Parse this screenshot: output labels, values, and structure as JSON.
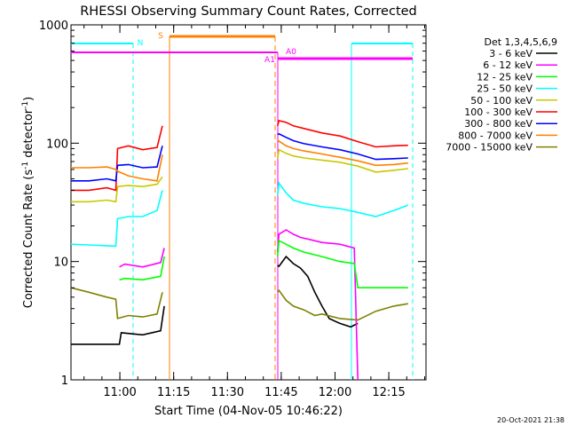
{
  "chart_data": {
    "type": "line",
    "title": "RHESSI Observing Summary Count Rates, Corrected",
    "xlabel": "Start Time (04-Nov-05 10:46:22)",
    "ylabel_main": "Corrected Count Rate (s",
    "ylabel_sup1": "-1",
    "ylabel_mid": " detector",
    "ylabel_sup2": "-1",
    "ylabel_end": ")",
    "y_scale": "log",
    "ylim": [
      1,
      1000
    ],
    "y_ticks": [
      {
        "value": 1,
        "label": "1"
      },
      {
        "value": 10,
        "label": "10"
      },
      {
        "value": 100,
        "label": "100"
      },
      {
        "value": 1000,
        "label": "1000"
      }
    ],
    "x_unit": "minutes after 10:46:22",
    "xlim": [
      0,
      99
    ],
    "x_ticks": [
      {
        "value": 13.63,
        "label": "11:00"
      },
      {
        "value": 28.63,
        "label": "11:15"
      },
      {
        "value": 43.63,
        "label": "11:30"
      },
      {
        "value": 58.63,
        "label": "11:45"
      },
      {
        "value": 73.63,
        "label": "12:00"
      },
      {
        "value": 88.63,
        "label": "12:15"
      }
    ],
    "legend_title": "Det 1,3,4,5,6,9",
    "legend_position": "right",
    "series": [
      {
        "name": "3 - 6 keV",
        "color": "#000000",
        "segments": [
          [
            [
              0,
              2.0
            ],
            [
              5,
              2.0
            ],
            [
              10,
              2.0
            ],
            [
              13.5,
              2.0
            ],
            [
              14,
              2.5
            ],
            [
              20,
              2.4
            ],
            [
              25,
              2.6
            ],
            [
              26,
              4.2
            ]
          ],
          [
            [
              57.6,
              9.3
            ],
            [
              58,
              9.1
            ],
            [
              60,
              11.0
            ],
            [
              62,
              9.6
            ],
            [
              64,
              8.8
            ],
            [
              66,
              7.5
            ],
            [
              68,
              5.5
            ],
            [
              70,
              4.2
            ],
            [
              72,
              3.3
            ],
            [
              75,
              3.0
            ],
            [
              78,
              2.8
            ],
            [
              80,
              3.0
            ]
          ]
        ]
      },
      {
        "name": "6 - 12 keV",
        "color": "#ff00ff",
        "segments": [
          [
            [
              13.5,
              9.0
            ],
            [
              15,
              9.5
            ],
            [
              20,
              9.0
            ],
            [
              25,
              9.8
            ],
            [
              26,
              13.0
            ]
          ],
          [
            [
              57.6,
              12.0
            ],
            [
              58,
              17.0
            ],
            [
              60,
              18.5
            ],
            [
              62,
              17.0
            ],
            [
              64,
              16.0
            ],
            [
              66,
              15.5
            ],
            [
              70,
              14.5
            ],
            [
              75,
              14.0
            ],
            [
              79,
              13.0
            ],
            [
              80,
              1.0
            ]
          ]
        ]
      },
      {
        "name": "12 - 25 keV",
        "color": "#00ff00",
        "segments": [
          [
            [
              13.5,
              7.0
            ],
            [
              15,
              7.2
            ],
            [
              20,
              7.0
            ],
            [
              25,
              7.5
            ],
            [
              26,
              11.0
            ]
          ],
          [
            [
              57.6,
              11.0
            ],
            [
              58,
              15.0
            ],
            [
              60,
              14.0
            ],
            [
              62,
              13.0
            ],
            [
              65,
              12.0
            ],
            [
              70,
              11.0
            ],
            [
              75,
              10.0
            ],
            [
              79,
              9.6
            ],
            [
              80,
              6.0
            ],
            [
              85,
              6.0
            ],
            [
              90,
              6.0
            ],
            [
              94,
              6.0
            ]
          ]
        ]
      },
      {
        "name": "25 - 50 keV",
        "color": "#00ffff",
        "segments": [
          [
            [
              0,
              14.0
            ],
            [
              5,
              13.8
            ],
            [
              10,
              13.6
            ],
            [
              12.5,
              13.5
            ],
            [
              13,
              23.0
            ],
            [
              16,
              24.0
            ],
            [
              20,
              24.0
            ],
            [
              24,
              27.0
            ],
            [
              25.5,
              40.0
            ]
          ],
          [
            [
              57.6,
              36.0
            ],
            [
              58,
              46.0
            ],
            [
              60,
              38.0
            ],
            [
              62,
              33.0
            ],
            [
              65,
              31.0
            ],
            [
              70,
              29.0
            ],
            [
              75,
              28.0
            ],
            [
              80,
              26.0
            ],
            [
              85,
              24.0
            ],
            [
              90,
              27.0
            ],
            [
              94,
              30.0
            ]
          ]
        ]
      },
      {
        "name": "50 - 100 keV",
        "color": "#c8c800",
        "segments": [
          [
            [
              0,
              32.0
            ],
            [
              5,
              32.0
            ],
            [
              10,
              33.0
            ],
            [
              12.5,
              32.0
            ],
            [
              13,
              43.0
            ],
            [
              16,
              44.0
            ],
            [
              20,
              43.0
            ],
            [
              24,
              45.0
            ],
            [
              25.5,
              52.0
            ]
          ],
          [
            [
              57.6,
              74.0
            ],
            [
              58,
              88.0
            ],
            [
              60,
              82.0
            ],
            [
              62,
              78.0
            ],
            [
              65,
              75.0
            ],
            [
              70,
              72.0
            ],
            [
              75,
              69.0
            ],
            [
              80,
              64.0
            ],
            [
              85,
              57.0
            ],
            [
              90,
              59.0
            ],
            [
              94,
              61.0
            ]
          ]
        ]
      },
      {
        "name": "100 - 300 keV",
        "color": "#ff0000",
        "segments": [
          [
            [
              0,
              40.0
            ],
            [
              5,
              40.0
            ],
            [
              10,
              42.0
            ],
            [
              12.5,
              40.0
            ],
            [
              13,
              90.0
            ],
            [
              16,
              95.0
            ],
            [
              20,
              88.0
            ],
            [
              24,
              92.0
            ],
            [
              25.5,
              140.0
            ]
          ],
          [
            [
              57.6,
              140.0
            ],
            [
              58,
              155.0
            ],
            [
              60,
              150.0
            ],
            [
              62,
              140.0
            ],
            [
              65,
              133.0
            ],
            [
              70,
              122.0
            ],
            [
              75,
              115.0
            ],
            [
              80,
              103.0
            ],
            [
              85,
              93.0
            ],
            [
              90,
              95.0
            ],
            [
              94,
              96.0
            ]
          ]
        ]
      },
      {
        "name": "300 - 800 keV",
        "color": "#0000ff",
        "segments": [
          [
            [
              0,
              48.0
            ],
            [
              5,
              48.0
            ],
            [
              10,
              50.0
            ],
            [
              12.5,
              48.0
            ],
            [
              13,
              65.0
            ],
            [
              16,
              66.0
            ],
            [
              20,
              62.0
            ],
            [
              24,
              63.0
            ],
            [
              25.5,
              95.0
            ]
          ],
          [
            [
              57.6,
              118.0
            ],
            [
              58,
              120.0
            ],
            [
              60,
              112.0
            ],
            [
              62,
              105.0
            ],
            [
              65,
              99.0
            ],
            [
              70,
              93.0
            ],
            [
              75,
              88.0
            ],
            [
              80,
              81.0
            ],
            [
              85,
              73.0
            ],
            [
              90,
              74.0
            ],
            [
              94,
              75.0
            ]
          ]
        ]
      },
      {
        "name": "800 - 7000 keV",
        "color": "#ff8000",
        "segments": [
          [
            [
              0,
              62.0
            ],
            [
              5,
              62.0
            ],
            [
              10,
              63.0
            ],
            [
              12.5,
              60.0
            ],
            [
              13,
              58.0
            ],
            [
              16,
              53.0
            ],
            [
              20,
              50.0
            ],
            [
              24,
              48.0
            ],
            [
              25.5,
              80.0
            ]
          ],
          [
            [
              57.6,
              107.0
            ],
            [
              58,
              104.0
            ],
            [
              60,
              95.0
            ],
            [
              62,
              90.0
            ],
            [
              65,
              86.0
            ],
            [
              70,
              81.0
            ],
            [
              75,
              76.0
            ],
            [
              80,
              71.0
            ],
            [
              85,
              65.0
            ],
            [
              90,
              66.0
            ],
            [
              94,
              68.0
            ]
          ]
        ]
      },
      {
        "name": "7000 - 15000 keV",
        "color": "#808000",
        "segments": [
          [
            [
              0,
              6.0
            ],
            [
              5,
              5.5
            ],
            [
              10,
              5.0
            ],
            [
              12.5,
              4.8
            ],
            [
              13,
              3.3
            ],
            [
              16,
              3.5
            ],
            [
              20,
              3.4
            ],
            [
              24,
              3.6
            ],
            [
              25.5,
              5.5
            ]
          ],
          [
            [
              57.6,
              5.5
            ],
            [
              58,
              5.7
            ],
            [
              60,
              4.7
            ],
            [
              62,
              4.2
            ],
            [
              65,
              3.9
            ],
            [
              68,
              3.5
            ],
            [
              70,
              3.6
            ],
            [
              75,
              3.3
            ],
            [
              80,
              3.2
            ],
            [
              85,
              3.8
            ],
            [
              90,
              4.2
            ],
            [
              94,
              4.4
            ]
          ]
        ]
      }
    ],
    "annotations": [
      {
        "label": "N",
        "color": "#00ffff"
      },
      {
        "label": "S",
        "color": "#ff8000"
      },
      {
        "label": "A1",
        "color": "#ff00ff"
      },
      {
        "label": "A0",
        "color": "#ff00ff"
      }
    ]
  },
  "footer": {
    "timestamp": "20-Oct-2021 21:38"
  }
}
